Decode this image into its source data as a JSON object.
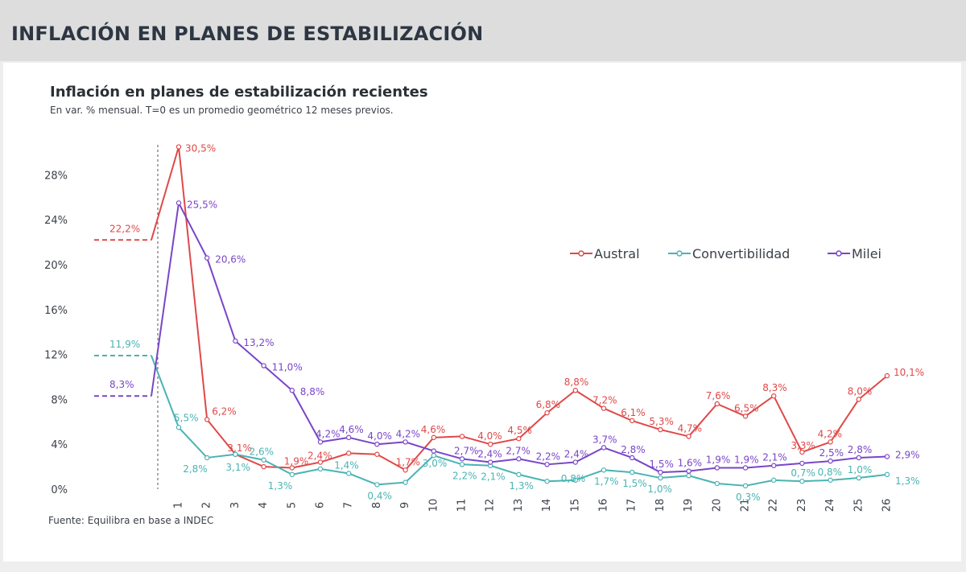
{
  "banner": {
    "title": "INFLACIÓN EN PLANES DE ESTABILIZACIÓN"
  },
  "chart": {
    "title": "Inflación en planes de estabilización recientes",
    "subtitle": "En var. % mensual. T=0 es un promedio geométrico 12 meses previos.",
    "source": "Fuente: Equilibra en base a INDEC"
  },
  "chart_data": {
    "type": "line",
    "title": "Inflación en planes de estabilización recientes",
    "subtitle": "En var. % mensual. T=0 es un promedio geométrico 12 meses previos.",
    "ylim": [
      0,
      30
    ],
    "yticks": [
      0,
      4,
      8,
      12,
      16,
      20,
      24,
      28
    ],
    "ytick_labels": [
      "0%",
      "4%",
      "8%",
      "12%",
      "16%",
      "20%",
      "24%",
      "28%"
    ],
    "x": [
      1,
      2,
      3,
      4,
      5,
      6,
      7,
      8,
      9,
      10,
      11,
      12,
      13,
      14,
      15,
      16,
      17,
      18,
      19,
      20,
      21,
      22,
      23,
      24,
      25,
      26
    ],
    "x_labels": [
      "1",
      "2",
      "3",
      "4",
      "5",
      "6",
      "7",
      "8",
      "9",
      "10",
      "11",
      "12",
      "13",
      "14",
      "15",
      "16",
      "17",
      "18",
      "19",
      "20",
      "21",
      "22",
      "23",
      "24",
      "25",
      "26"
    ],
    "legend_position": "top-right",
    "series": [
      {
        "name": "Austral",
        "color": "#e04848",
        "t0": 22.2,
        "t0_label": "22,2%",
        "values": [
          30.5,
          6.2,
          3.1,
          2.0,
          1.9,
          2.4,
          3.2,
          3.1,
          1.7,
          4.6,
          4.7,
          4.0,
          4.5,
          6.8,
          8.8,
          7.2,
          6.1,
          5.3,
          4.7,
          7.6,
          6.5,
          8.3,
          3.3,
          4.2,
          8.0,
          10.1
        ],
        "labels": [
          "30,5%",
          "6,2%",
          "3,1%",
          "",
          "1,9%",
          "2,4%",
          "",
          "",
          "1,7%",
          "4,6%",
          "",
          "4,0%",
          "4,5%",
          "6,8%",
          "8,8%",
          "7,2%",
          "6,1%",
          "5,3%",
          "4,7%",
          "7,6%",
          "6,5%",
          "8,3%",
          "3,3%",
          "4,2%",
          "8,0%",
          "10,1%"
        ]
      },
      {
        "name": "Convertibilidad",
        "color": "#4ab3b3",
        "t0": 11.9,
        "t0_label": "11,9%",
        "values": [
          5.5,
          2.8,
          3.1,
          2.6,
          1.3,
          1.8,
          1.4,
          0.4,
          0.6,
          3.0,
          2.2,
          2.1,
          1.3,
          0.7,
          0.8,
          1.7,
          1.5,
          1.0,
          1.2,
          0.5,
          0.3,
          0.8,
          0.7,
          0.8,
          1.0,
          1.3
        ],
        "labels": [
          "5,5%",
          "2,8%",
          "3,1%",
          "2,6%",
          "1,3%",
          "",
          "1,4%",
          "0,4%",
          "",
          "3,0%",
          "2,2%",
          "2,1%",
          "1,3%",
          "",
          "0,8%",
          "1,7%",
          "1,5%",
          "1,0%",
          "",
          "",
          "0,3%",
          "",
          "0,7%",
          "0,8%",
          "1,0%",
          "1,3%"
        ]
      },
      {
        "name": "Milei",
        "color": "#7a45c8",
        "t0": 8.3,
        "t0_label": "8,3%",
        "values": [
          25.5,
          20.6,
          13.2,
          11.0,
          8.8,
          4.2,
          4.6,
          4.0,
          4.2,
          3.4,
          2.7,
          2.4,
          2.7,
          2.2,
          2.4,
          3.7,
          2.8,
          1.5,
          1.6,
          1.9,
          1.9,
          2.1,
          2.3,
          2.5,
          2.8,
          2.9
        ],
        "labels": [
          "25,5%",
          "20,6%",
          "13,2%",
          "11,0%",
          "8,8%",
          "4,2%",
          "4,6%",
          "4,0%",
          "4,2%",
          "",
          "2,7%",
          "2,4%",
          "2,7%",
          "2,2%",
          "2,4%",
          "3,7%",
          "2,8%",
          "1,5%",
          "1,6%",
          "1,9%",
          "1,9%",
          "2,1%",
          "",
          "2,5%",
          "2,8%",
          "2,9%"
        ]
      }
    ]
  }
}
